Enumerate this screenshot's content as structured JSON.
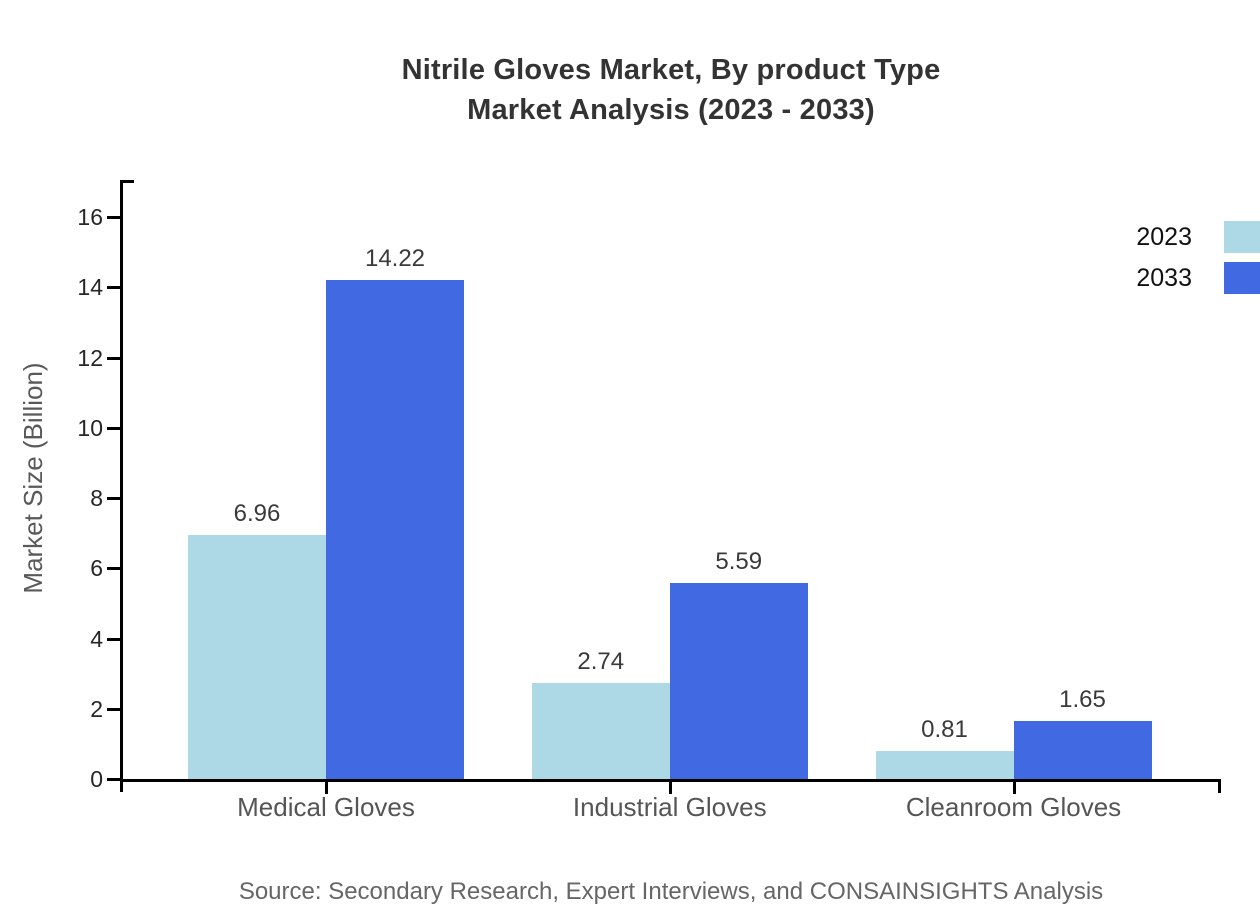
{
  "chart_data": {
    "type": "bar",
    "title_lines": [
      "Nitrile Gloves Market, By product Type",
      "Market Analysis (2023 - 2033)"
    ],
    "ylabel": "Market Size (Billion)",
    "xlabel": "",
    "categories": [
      "Medical Gloves",
      "Industrial Gloves",
      "Cleanroom Gloves"
    ],
    "series": [
      {
        "name": "2023",
        "color": "#ADD8E6",
        "values": [
          6.96,
          2.74,
          0.81
        ]
      },
      {
        "name": "2033",
        "color": "#4169E1",
        "values": [
          14.22,
          5.59,
          1.65
        ]
      }
    ],
    "y_ticks": [
      0,
      2,
      4,
      6,
      8,
      10,
      12,
      14,
      16
    ],
    "ylim": [
      0,
      17.1
    ],
    "grid": false,
    "legend_position": "top-right",
    "bar_value_decimals": 2
  },
  "source_note": "Source: Secondary Research, Expert Interviews, and CONSAINSIGHTS Analysis",
  "colors": {
    "background": "#ffffff",
    "axis": "#000000",
    "title": "#333333",
    "tick_label": "#262626",
    "category_label": "#555555",
    "value_label": "#3a3a3a",
    "ylabel": "#595959",
    "source": "#666666",
    "legend_text": "#111111",
    "series_2023": "#ADD8E6",
    "series_2033": "#4169E1"
  }
}
